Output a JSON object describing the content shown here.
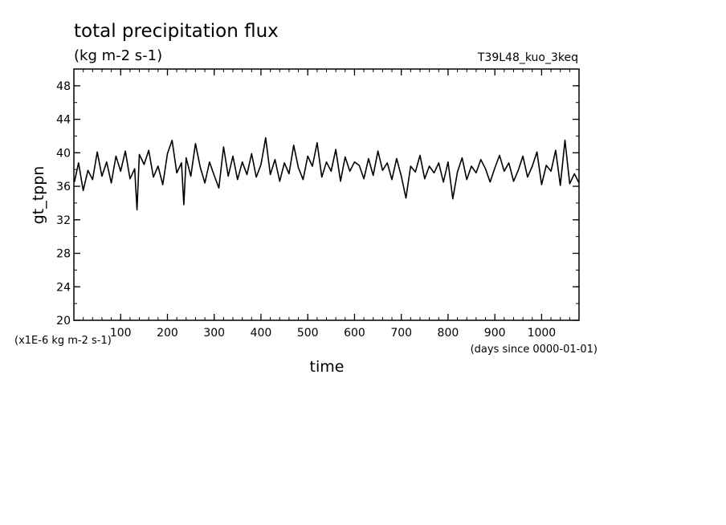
{
  "title": "total precipitation flux",
  "units": "(kg m-2 s-1)",
  "run_label": "T39L48_kuo_3keq",
  "chart_data": {
    "type": "line",
    "xlabel": "time",
    "ylabel": "gt_tppn",
    "y_scale_note": "(x1E-6 kg m-2 s-1)",
    "x_units_note": "(days since 0000-01-01)",
    "xlim": [
      0,
      1080
    ],
    "ylim": [
      20,
      50
    ],
    "x_ticks": [
      100,
      200,
      300,
      400,
      500,
      600,
      700,
      800,
      900,
      1000
    ],
    "y_ticks": [
      20,
      24,
      28,
      32,
      36,
      40,
      44,
      48
    ],
    "grid": false,
    "legend": "none",
    "line_color": "#000000",
    "series": [
      {
        "x": [
          1,
          10,
          20,
          30,
          40,
          50,
          60,
          70,
          80,
          90,
          100,
          110,
          120,
          130,
          135,
          140,
          150,
          160,
          170,
          180,
          190,
          200,
          210,
          220,
          230,
          235,
          240,
          250,
          260,
          270,
          280,
          290,
          300,
          310,
          320,
          330,
          340,
          350,
          360,
          370,
          380,
          390,
          400,
          410,
          420,
          430,
          440,
          450,
          460,
          470,
          480,
          490,
          500,
          510,
          520,
          530,
          540,
          550,
          560,
          570,
          580,
          590,
          600,
          610,
          620,
          630,
          640,
          650,
          660,
          670,
          680,
          690,
          700,
          710,
          720,
          730,
          740,
          750,
          760,
          770,
          780,
          790,
          800,
          810,
          820,
          830,
          840,
          850,
          860,
          870,
          880,
          890,
          900,
          910,
          920,
          930,
          940,
          950,
          960,
          970,
          980,
          990,
          1000,
          1010,
          1020,
          1030,
          1040,
          1050,
          1060,
          1070,
          1080
        ],
        "y": [
          36.5,
          38.8,
          35.5,
          37.9,
          36.8,
          40.1,
          37.2,
          38.9,
          36.4,
          39.6,
          37.8,
          40.2,
          36.9,
          38.1,
          33.2,
          39.8,
          38.6,
          40.3,
          37.1,
          38.4,
          36.2,
          39.9,
          41.5,
          37.6,
          38.8,
          33.8,
          39.4,
          37.2,
          41.1,
          38.3,
          36.4,
          38.9,
          37.3,
          35.8,
          40.7,
          37.2,
          39.6,
          36.8,
          38.9,
          37.4,
          39.9,
          37.1,
          38.6,
          41.8,
          37.4,
          39.2,
          36.6,
          38.8,
          37.5,
          40.9,
          38.2,
          36.8,
          39.6,
          38.4,
          41.2,
          37.1,
          38.9,
          37.8,
          40.4,
          36.6,
          39.5,
          37.8,
          38.9,
          38.5,
          36.9,
          39.3,
          37.3,
          40.2,
          37.9,
          38.8,
          36.8,
          39.3,
          37.2,
          34.6,
          38.4,
          37.7,
          39.7,
          36.9,
          38.4,
          37.6,
          38.8,
          36.5,
          38.9,
          34.5,
          37.7,
          39.4,
          36.8,
          38.4,
          37.6,
          39.2,
          38.1,
          36.5,
          38.2,
          39.7,
          37.8,
          38.8,
          36.6,
          37.9,
          39.6,
          37.1,
          38.4,
          40.1,
          36.2,
          38.5,
          37.8,
          40.3,
          36.1,
          41.5,
          36.3,
          37.5,
          36.4
        ]
      }
    ]
  }
}
